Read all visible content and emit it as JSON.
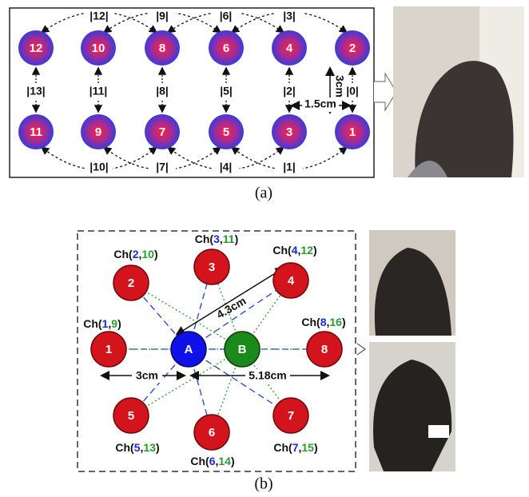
{
  "panel_a": {
    "nodes": {
      "n1": "1",
      "n2": "2",
      "n3": "3",
      "n4": "4",
      "n5": "5",
      "n6": "6",
      "n7": "7",
      "n8": "8",
      "n9": "9",
      "n10": "10",
      "n11": "11",
      "n12": "12"
    },
    "vertical_channels": [
      "|13|",
      "|11|",
      "|8|",
      "|5|",
      "|2|",
      "|0|"
    ],
    "top_channels": [
      "|12|",
      "|9|",
      "|6|",
      "|3|"
    ],
    "bottom_channels": [
      "|10|",
      "|7|",
      "|4|",
      "|1|"
    ],
    "vertical_distance": "3cm",
    "horizontal_distance": "1.5cm",
    "caption": "(a)"
  },
  "panel_b": {
    "sources": {
      "a": "A",
      "b": "B"
    },
    "detectors": [
      "1",
      "2",
      "3",
      "4",
      "5",
      "6",
      "7",
      "8"
    ],
    "channels": [
      [
        "Ch(",
        "1",
        ",",
        "9",
        ")"
      ],
      [
        "Ch(",
        "2",
        ",",
        "10",
        ")"
      ],
      [
        "Ch(",
        "3",
        ",",
        "11",
        ")"
      ],
      [
        "Ch(",
        "4",
        ",",
        "12",
        ")"
      ],
      [
        "Ch(",
        "5",
        ",",
        "13",
        ")"
      ],
      [
        "Ch(",
        "6",
        ",",
        "14",
        ")"
      ],
      [
        "Ch(",
        "7",
        ",",
        "15",
        ")"
      ],
      [
        "Ch(",
        "8",
        ",",
        "16",
        ")"
      ]
    ],
    "distance_diagonal": "4.3cm",
    "distance_short": "3cm",
    "distance_long": "5.18cm",
    "caption": "(b)"
  }
}
